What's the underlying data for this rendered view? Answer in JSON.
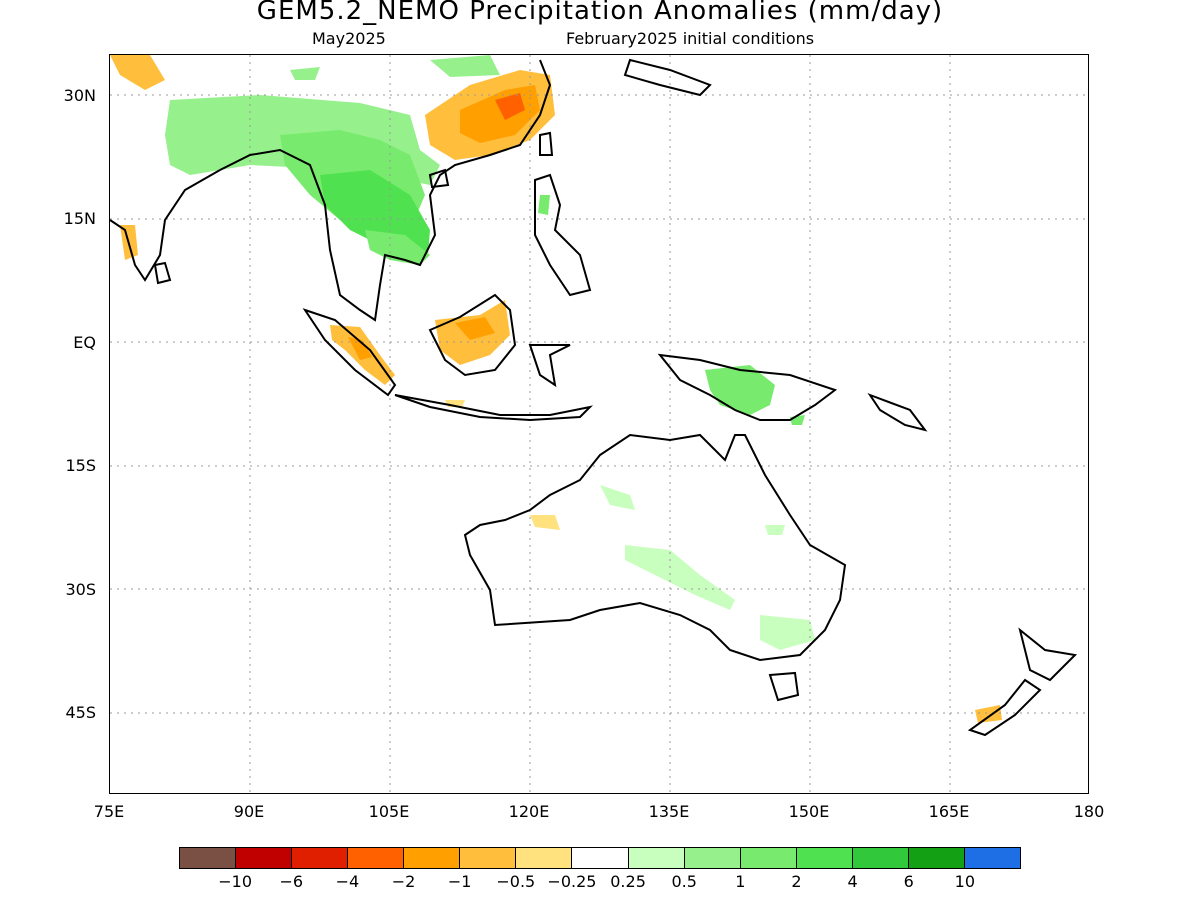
{
  "header": {
    "title": "GEM5.2_NEMO Precipitation Anomalies (mm/day)",
    "month": "May2025",
    "init": "February2025 initial conditions"
  },
  "axes": {
    "y_labels": [
      "30N",
      "15N",
      "EQ",
      "15S",
      "30S",
      "45S"
    ],
    "x_labels": [
      "75E",
      "90E",
      "105E",
      "120E",
      "135E",
      "150E",
      "165E",
      "180"
    ]
  },
  "colorbar": {
    "colors": [
      "#7b5044",
      "#c00000",
      "#e01e00",
      "#ff6000",
      "#ff9f00",
      "#ffbe3c",
      "#ffe17d",
      "#ffffff",
      "#c8ffbe",
      "#96f08c",
      "#78eb6e",
      "#50e150",
      "#32c83c",
      "#14a014",
      "#1e6ee6"
    ],
    "labels": [
      "−10",
      "−6",
      "−4",
      "−2",
      "−1",
      "−0.5",
      "−0.25",
      "0.25",
      "0.5",
      "1",
      "2",
      "4",
      "6",
      "10"
    ]
  },
  "anomaly_fields": [
    {
      "region": "South China",
      "level": "-2",
      "color": "#ff9f00"
    },
    {
      "region": "Indochina",
      "level": "2",
      "color": "#50e150"
    },
    {
      "region": "Tibetan Plateau",
      "level": "1",
      "color": "#78eb6e"
    },
    {
      "region": "Sumatra",
      "level": "-1",
      "color": "#ffbe3c"
    },
    {
      "region": "Borneo",
      "level": "-1",
      "color": "#ffbe3c"
    },
    {
      "region": "New Guinea",
      "level": "1",
      "color": "#78eb6e"
    },
    {
      "region": "Eastern Australia",
      "level": "0.5",
      "color": "#96f08c"
    },
    {
      "region": "Northwest Australia",
      "level": "-0.25",
      "color": "#ffe17d"
    }
  ]
}
